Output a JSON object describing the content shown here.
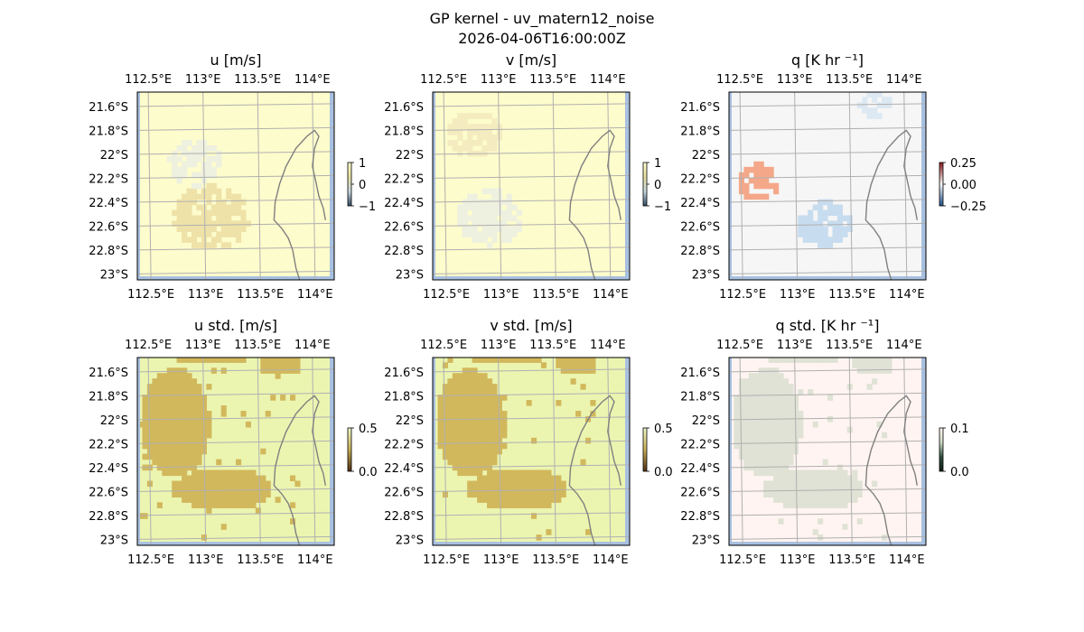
{
  "figure": {
    "title_line1": "GP kernel - uv_matern12_noise",
    "title_line2": "2026-04-06T16:00:00Z"
  },
  "map_axes": {
    "lon_ticks": [
      112.5,
      113.0,
      113.5,
      114.0
    ],
    "lon_labels": [
      "112.5°E",
      "113°E",
      "113.5°E",
      "114°E"
    ],
    "lat_ticks": [
      -21.6,
      -21.8,
      -22.0,
      -22.2,
      -22.4,
      -22.6,
      -22.8,
      -23.0
    ],
    "lat_labels": [
      "21.6°S",
      "21.8°S",
      "22°S",
      "22.2°S",
      "22.4°S",
      "22.6°S",
      "22.8°S",
      "23°S"
    ],
    "lon_range": [
      112.4,
      114.2
    ],
    "lat_range": [
      -23.05,
      -21.48
    ],
    "gridlines": true
  },
  "chart_data": [
    {
      "type": "heatmap",
      "title": "u [m/s]",
      "colorbar": {
        "ticks": [
          1,
          0,
          -1
        ],
        "tick_labels": [
          "1",
          "0",
          "−1"
        ],
        "colors": [
          "#ffffd0",
          "#e8e0a0",
          "#c8d8e0",
          "#304860"
        ]
      },
      "base_color": "#fdfccc",
      "blobs": [
        {
          "lon": 113.05,
          "lat": -22.55,
          "r": 0.35,
          "color": "#efe2a8"
        },
        {
          "lon": 112.9,
          "lat": -22.1,
          "r": 0.25,
          "color": "#eef0e0"
        }
      ]
    },
    {
      "type": "heatmap",
      "title": "v [m/s]",
      "colorbar": {
        "ticks": [
          1,
          0,
          -1
        ],
        "tick_labels": [
          "1",
          "0",
          "−1"
        ],
        "colors": [
          "#ffffd0",
          "#e8e0a0",
          "#c8d8e0",
          "#304860"
        ]
      },
      "base_color": "#fdfccc",
      "blobs": [
        {
          "lon": 112.9,
          "lat": -22.55,
          "r": 0.3,
          "color": "#eef0e0"
        },
        {
          "lon": 112.75,
          "lat": -21.85,
          "r": 0.25,
          "color": "#f4ecc0"
        }
      ]
    },
    {
      "type": "heatmap",
      "title": "q [K hr ⁻¹]",
      "colorbar": {
        "ticks": [
          0.25,
          0.0,
          -0.25
        ],
        "tick_labels": [
          "0.25",
          "0.00",
          "−0.25"
        ],
        "colors": [
          "#8b1a1a",
          "#f7f7f7",
          "#1f4e8c"
        ]
      },
      "base_color": "#f6f6f6",
      "blobs": [
        {
          "lon": 112.65,
          "lat": -22.25,
          "r": 0.2,
          "color": "#f4a889"
        },
        {
          "lon": 113.25,
          "lat": -22.6,
          "r": 0.25,
          "color": "#c7dcef"
        },
        {
          "lon": 113.7,
          "lat": -21.6,
          "r": 0.15,
          "color": "#dce8f2"
        }
      ]
    },
    {
      "type": "heatmap",
      "title": "u std. [m/s]",
      "colorbar": {
        "ticks": [
          0.5,
          0.0
        ],
        "tick_labels": [
          "0.5",
          "0.0"
        ],
        "colors": [
          "#f0f8c8",
          "#c8b058",
          "#503010"
        ]
      },
      "base_color": "#ebf5b0",
      "high_color": "#d2b85c"
    },
    {
      "type": "heatmap",
      "title": "v std. [m/s]",
      "colorbar": {
        "ticks": [
          0.5,
          0.0
        ],
        "tick_labels": [
          "0.5",
          "0.0"
        ],
        "colors": [
          "#f0f8c8",
          "#c8b058",
          "#503010"
        ]
      },
      "base_color": "#ebf5b0",
      "high_color": "#d2b85c"
    },
    {
      "type": "heatmap",
      "title": "q std. [K hr ⁻¹]",
      "colorbar": {
        "ticks": [
          0.1,
          0.0
        ],
        "tick_labels": [
          "0.1",
          "0.0"
        ],
        "colors": [
          "#fff4f0",
          "#d0dcc8",
          "#305040",
          "#102010"
        ]
      },
      "base_color": "#fff4f1",
      "high_color": "#dfe2d4"
    }
  ],
  "colors": {
    "gridline": "#b0b0b0",
    "coastline": "#808080",
    "ocean_edge": "#a8c0e0",
    "axis_frame": "#000000"
  }
}
